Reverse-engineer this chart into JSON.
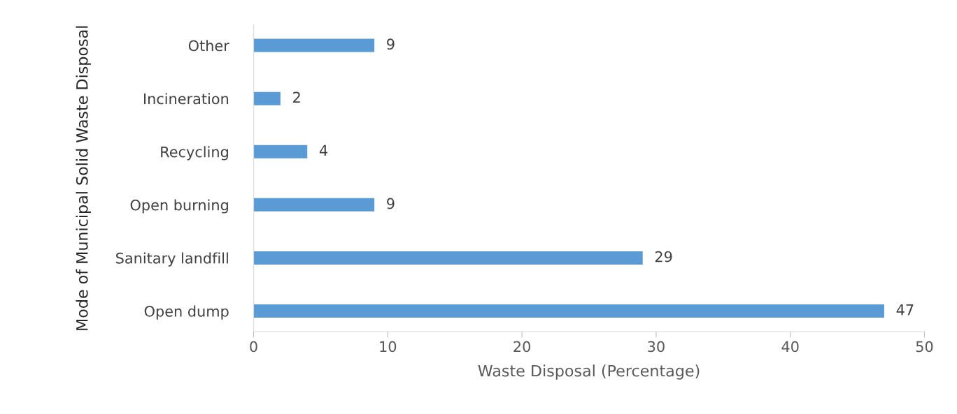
{
  "chart_data": {
    "type": "bar",
    "orientation": "horizontal",
    "categories": [
      "Other",
      "Incineration",
      "Recycling",
      "Open burning",
      "Sanitary landfill",
      "Open dump"
    ],
    "values": [
      9,
      2,
      4,
      9,
      29,
      47
    ],
    "color": "#5b9bd5",
    "xlabel": "Waste Disposal (Percentage)",
    "ylabel": "Mode of Municipal Solid Waste Disposal",
    "xlim": [
      0,
      50
    ],
    "xticks": [
      0,
      10,
      20,
      30,
      40,
      50
    ],
    "data_labels": true,
    "grid": false,
    "legend": false
  }
}
